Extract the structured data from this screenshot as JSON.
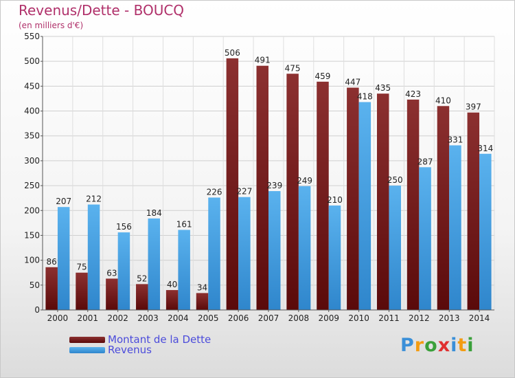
{
  "header": {
    "title": "Revenus/Dette - BOUCQ",
    "subtitle": "(en milliers d'€)"
  },
  "chart_data": {
    "type": "bar",
    "title": "Revenus/Dette - BOUCQ",
    "subtitle": "(en milliers d'€)",
    "xlabel": "",
    "ylabel": "",
    "ylim": [
      0,
      550
    ],
    "yticks": [
      0,
      50,
      100,
      150,
      200,
      250,
      300,
      350,
      400,
      450,
      500,
      550
    ],
    "grid": true,
    "legend_position": "bottom-left",
    "categories": [
      "2000",
      "2001",
      "2002",
      "2003",
      "2004",
      "2005",
      "2006",
      "2007",
      "2008",
      "2009",
      "2010",
      "2011",
      "2012",
      "2013",
      "2014"
    ],
    "series": [
      {
        "name": "Montant de la Dette",
        "color": "#7a1c1c",
        "values": [
          86,
          75,
          63,
          52,
          40,
          34,
          506,
          491,
          475,
          459,
          447,
          435,
          423,
          410,
          397
        ]
      },
      {
        "name": "Revenus",
        "color": "#3f9fe0",
        "values": [
          207,
          212,
          156,
          184,
          161,
          226,
          227,
          239,
          249,
          210,
          418,
          250,
          287,
          331,
          314
        ]
      }
    ]
  },
  "logo": {
    "letters": [
      {
        "ch": "P",
        "color": "#3a8fd8"
      },
      {
        "ch": "r",
        "color": "#f39c12"
      },
      {
        "ch": "o",
        "color": "#3aa03a"
      },
      {
        "ch": "x",
        "color": "#e03030"
      },
      {
        "ch": "i",
        "color": "#3a8fd8"
      },
      {
        "ch": "t",
        "color": "#f39c12"
      },
      {
        "ch": "i",
        "color": "#3aa03a"
      }
    ]
  }
}
